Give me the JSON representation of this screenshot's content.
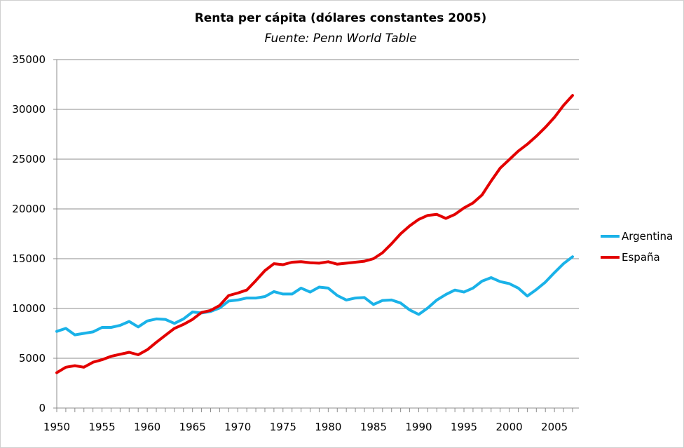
{
  "chart_data": {
    "type": "line",
    "title": "Renta per cápita (dólares constantes 2005)",
    "subtitle": "Fuente: Penn World Table",
    "xlabel": "",
    "ylabel": "",
    "ylim": [
      0,
      35000
    ],
    "y_ticks": [
      "0",
      "5000",
      "10000",
      "15000",
      "20000",
      "25000",
      "30000",
      "35000"
    ],
    "x_ticks": [
      "1950",
      "1955",
      "1960",
      "1965",
      "1970",
      "1975",
      "1980",
      "1985",
      "1990",
      "1995",
      "2000",
      "2005"
    ],
    "grid": true,
    "legend_position": "right",
    "x": [
      1950,
      1951,
      1952,
      1953,
      1954,
      1955,
      1956,
      1957,
      1958,
      1959,
      1960,
      1961,
      1962,
      1963,
      1964,
      1965,
      1966,
      1967,
      1968,
      1969,
      1970,
      1971,
      1972,
      1973,
      1974,
      1975,
      1976,
      1977,
      1978,
      1979,
      1980,
      1981,
      1982,
      1983,
      1984,
      1985,
      1986,
      1987,
      1988,
      1989,
      1990,
      1991,
      1992,
      1993,
      1994,
      1995,
      1996,
      1997,
      1998,
      1999,
      2000,
      2001,
      2002,
      2003,
      2004,
      2005,
      2006,
      2007
    ],
    "series": [
      {
        "name": "Argentina",
        "color": "#1ab2e8",
        "values": [
          7700,
          8000,
          7350,
          7500,
          7650,
          8100,
          8100,
          8300,
          8700,
          8150,
          8750,
          8950,
          8900,
          8500,
          8950,
          9650,
          9550,
          9700,
          10050,
          10750,
          10850,
          11050,
          11050,
          11200,
          11700,
          11450,
          11450,
          12050,
          11650,
          12150,
          12050,
          11300,
          10850,
          11050,
          11100,
          10400,
          10800,
          10850,
          10550,
          9850,
          9400,
          10050,
          10850,
          11400,
          11850,
          11650,
          12050,
          12750,
          13100,
          12700,
          12500,
          12050,
          11250,
          11900,
          12650,
          13600,
          14500,
          15200
        ]
      },
      {
        "name": "España",
        "color": "#e30000",
        "values": [
          3550,
          4100,
          4250,
          4100,
          4600,
          4850,
          5200,
          5400,
          5600,
          5350,
          5850,
          6600,
          7300,
          8000,
          8400,
          8900,
          9600,
          9800,
          10300,
          11300,
          11550,
          11850,
          12800,
          13800,
          14500,
          14400,
          14650,
          14700,
          14600,
          14550,
          14700,
          14450,
          14550,
          14650,
          14750,
          15000,
          15600,
          16500,
          17500,
          18300,
          18950,
          19350,
          19450,
          19050,
          19450,
          20100,
          20600,
          21400,
          22800,
          24100,
          24950,
          25800,
          26500,
          27300,
          28200,
          29200,
          30400,
          31400
        ]
      }
    ]
  }
}
